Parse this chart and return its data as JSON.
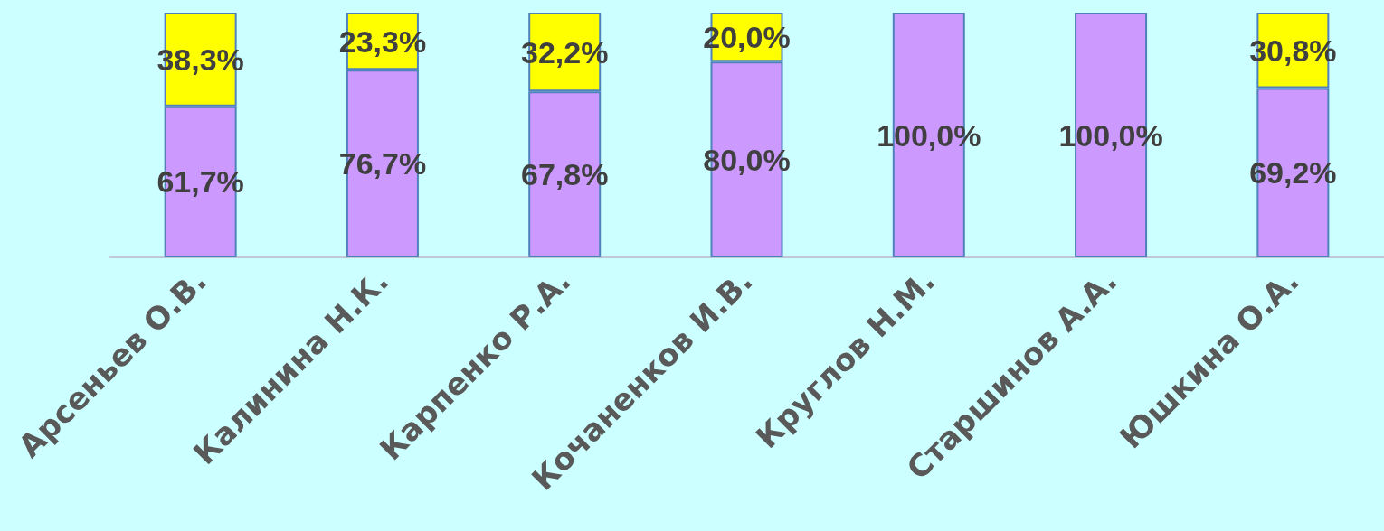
{
  "chart_data": {
    "type": "bar",
    "stacked": true,
    "categories": [
      "Арсеньев О.В.",
      "Калинина Н.К.",
      "Карпенко Р.А.",
      "Кочаненков И.В.",
      "Круглов Н.М.",
      "Старшинов А.А.",
      "Юшкина О.А."
    ],
    "series": [
      {
        "color": "#cc99ff",
        "values": [
          61.7,
          76.7,
          67.8,
          80.0,
          100.0,
          100.0,
          69.2
        ],
        "value_labels": [
          "61,7%",
          "76,7%",
          "67,8%",
          "80,0%",
          "100,0%",
          "100,0%",
          "69,2%"
        ]
      },
      {
        "color": "#ffff00",
        "values": [
          38.3,
          23.3,
          32.2,
          20.0,
          null,
          null,
          30.8
        ],
        "value_labels": [
          "38,3%",
          "23,3%",
          "32,2%",
          "20,0%",
          null,
          null,
          "30,8%"
        ]
      }
    ],
    "ylim": [
      0,
      100
    ],
    "tick_labels": "x",
    "grid": false
  }
}
